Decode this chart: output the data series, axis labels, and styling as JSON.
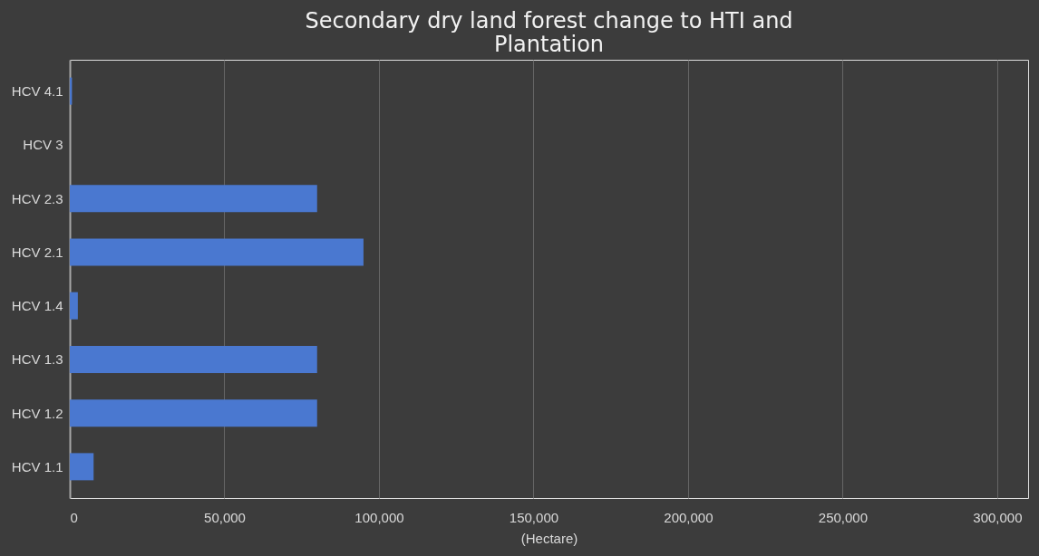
{
  "chart_data": {
    "type": "bar",
    "orientation": "horizontal",
    "title": [
      "Secondary dry land forest change to HTI and",
      "Plantation"
    ],
    "xlabel": "(Hectare)",
    "categories": [
      "HCV 4.1",
      "HCV 3",
      "HCV 2.3",
      "HCV 2.1",
      "HCV 1.4",
      "HCV 1.3",
      "HCV 1.2",
      "HCV 1.1"
    ],
    "values": [
      700,
      0,
      80000,
      95000,
      2600,
      80000,
      80000,
      7700
    ],
    "color": "#4a78d0",
    "xlim": [
      0,
      310000
    ],
    "xticks": [
      0,
      {
        "value": 50000,
        "label": "50,000"
      },
      {
        "value": 100000,
        "label": "100,000"
      },
      {
        "value": 150000,
        "label": "150,000"
      },
      {
        "value": 200000,
        "label": "200,000"
      },
      {
        "value": 250000,
        "label": "250,000"
      },
      {
        "value": 300000,
        "label": "300,000"
      }
    ],
    "grid": "x"
  }
}
